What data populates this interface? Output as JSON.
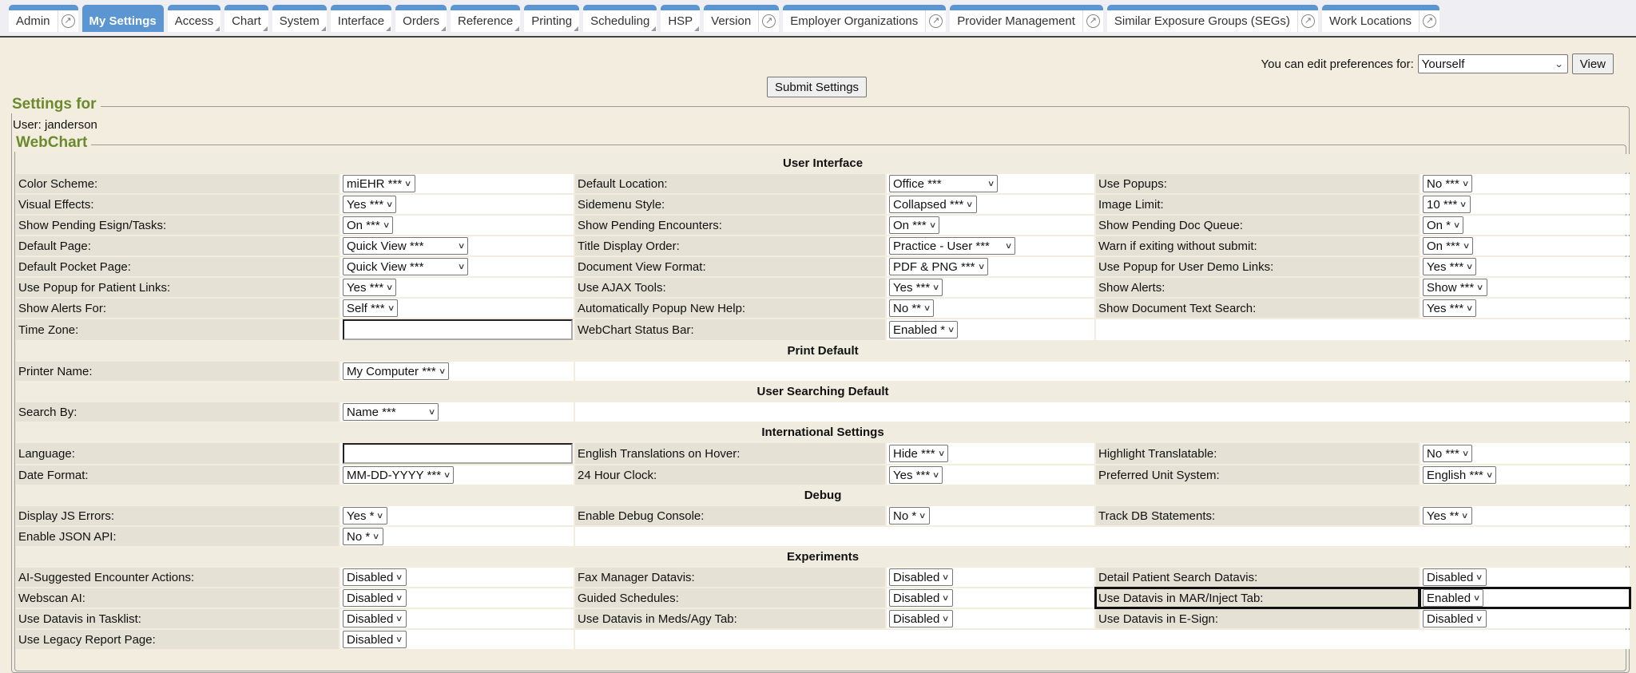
{
  "tabs": [
    {
      "label": "Admin",
      "ext": true
    },
    {
      "label": "My Settings",
      "active": true
    },
    {
      "label": "Access",
      "menu": true
    },
    {
      "label": "Chart",
      "menu": true
    },
    {
      "label": "System",
      "menu": true
    },
    {
      "label": "Interface",
      "menu": true
    },
    {
      "label": "Orders",
      "menu": true
    },
    {
      "label": "Reference",
      "menu": true
    },
    {
      "label": "Printing",
      "menu": true
    },
    {
      "label": "Scheduling",
      "menu": true
    },
    {
      "label": "HSP",
      "menu": true
    },
    {
      "label": "Version",
      "ext": true
    },
    {
      "label": "Employer Organizations",
      "ext": true
    },
    {
      "label": "Provider Management",
      "ext": true
    },
    {
      "label": "Similar Exposure Groups (SEGs)",
      "ext": true
    },
    {
      "label": "Work Locations",
      "ext": true
    }
  ],
  "preferences": {
    "label": "You can edit preferences for:",
    "selected": "Yourself",
    "view_button": "View"
  },
  "submit_button": "Submit Settings",
  "settings_for": {
    "legend": "Settings for",
    "user": "User: janderson"
  },
  "webchart": {
    "legend": "WebChart"
  },
  "colors": {
    "accent": "#5b96d3",
    "legend": "#6a8a2c",
    "background": "#f3ede0",
    "label_cell": "#e6e1d5"
  },
  "sections": [
    {
      "title": "User Interface",
      "rows": [
        [
          {
            "label": "Color Scheme:",
            "value": "miEHR ***"
          },
          {
            "label": "Default Location:",
            "value": "Office ***"
          },
          {
            "label": "Use Popups:",
            "value": "No ***"
          }
        ],
        [
          {
            "label": "Visual Effects:",
            "value": "Yes ***"
          },
          {
            "label": "Sidemenu Style:",
            "value": "Collapsed ***"
          },
          {
            "label": "Image Limit:",
            "value": "10 ***"
          }
        ],
        [
          {
            "label": "Show Pending Esign/Tasks:",
            "value": "On ***"
          },
          {
            "label": "Show Pending Encounters:",
            "value": "On ***"
          },
          {
            "label": "Show Pending Doc Queue:",
            "value": "On *"
          }
        ],
        [
          {
            "label": "Default Page:",
            "value": "Quick View ***"
          },
          {
            "label": "Title Display Order:",
            "value": "Practice - User ***"
          },
          {
            "label": "Warn if exiting without submit:",
            "value": "On ***"
          }
        ],
        [
          {
            "label": "Default Pocket Page:",
            "value": "Quick View ***"
          },
          {
            "label": "Document View Format:",
            "value": "PDF & PNG ***"
          },
          {
            "label": "Use Popup for User Demo Links:",
            "value": "Yes ***"
          }
        ],
        [
          {
            "label": "Use Popup for Patient Links:",
            "value": "Yes ***"
          },
          {
            "label": "Use AJAX Tools:",
            "value": "Yes ***"
          },
          {
            "label": "Show Alerts:",
            "value": "Show ***"
          }
        ],
        [
          {
            "label": "Show Alerts For:",
            "value": "Self ***"
          },
          {
            "label": "Automatically Popup New Help:",
            "value": "No **"
          },
          {
            "label": "Show Document Text Search:",
            "value": "Yes ***"
          }
        ],
        [
          {
            "label": "Time Zone:",
            "value": "",
            "type": "text"
          },
          {
            "label": "WebChart Status Bar:",
            "value": "Enabled *"
          }
        ]
      ]
    },
    {
      "title": "Print Default",
      "rows": [
        [
          {
            "label": "Printer Name:",
            "value": "My Computer ***"
          }
        ]
      ]
    },
    {
      "title": "User Searching Default",
      "rows": [
        [
          {
            "label": "Search By:",
            "value": "Name ***"
          }
        ]
      ]
    },
    {
      "title": "International Settings",
      "rows": [
        [
          {
            "label": "Language:",
            "value": "",
            "type": "text"
          },
          {
            "label": "English Translations on Hover:",
            "value": "Hide ***"
          },
          {
            "label": "Highlight Translatable:",
            "value": "No ***"
          }
        ],
        [
          {
            "label": "Date Format:",
            "value": "MM-DD-YYYY ***"
          },
          {
            "label": "24 Hour Clock:",
            "value": "Yes ***"
          },
          {
            "label": "Preferred Unit System:",
            "value": "English ***"
          }
        ]
      ]
    },
    {
      "title": "Debug",
      "rows": [
        [
          {
            "label": "Display JS Errors:",
            "value": "Yes *"
          },
          {
            "label": "Enable Debug Console:",
            "value": "No *"
          },
          {
            "label": "Track DB Statements:",
            "value": "Yes **"
          }
        ],
        [
          {
            "label": "Enable JSON API:",
            "value": "No *"
          }
        ]
      ]
    },
    {
      "title": "Experiments",
      "rows": [
        [
          {
            "label": "AI-Suggested Encounter Actions:",
            "value": "Disabled"
          },
          {
            "label": "Fax Manager Datavis:",
            "value": "Disabled"
          },
          {
            "label": "Detail Patient Search Datavis:",
            "value": "Disabled"
          }
        ],
        [
          {
            "label": "Webscan AI:",
            "value": "Disabled"
          },
          {
            "label": "Guided Schedules:",
            "value": "Disabled"
          },
          {
            "label": "Use Datavis in MAR/Inject Tab:",
            "value": "Enabled",
            "highlighted": true
          }
        ],
        [
          {
            "label": "Use Datavis in Tasklist:",
            "value": "Disabled"
          },
          {
            "label": "Use Datavis in Meds/Agy Tab:",
            "value": "Disabled"
          },
          {
            "label": "Use Datavis in E-Sign:",
            "value": "Disabled"
          }
        ],
        [
          {
            "label": "Use Legacy Report Page:",
            "value": "Disabled"
          }
        ]
      ]
    }
  ]
}
